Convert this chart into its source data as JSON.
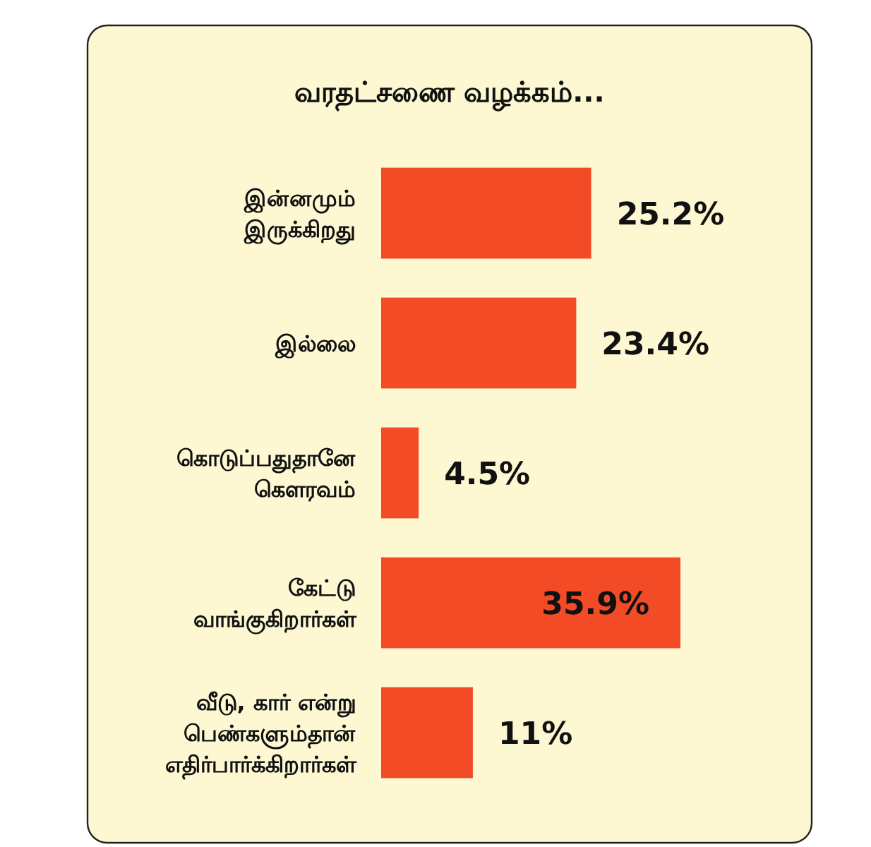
{
  "chart_data": {
    "type": "bar",
    "orientation": "horizontal",
    "title": "வரதட்சணை வழக்கம்...",
    "categories": [
      "இன்னமும்\nஇருக்கிறது",
      "இல்லை",
      "கொடுப்பதுதானே\nகௌரவம்",
      "கேட்டு\nவாங்குகிறார்கள்",
      "வீடு, கார் என்று\nபெண்களும்தான்\nஎதிர்பார்க்கிறார்கள்"
    ],
    "values": [
      25.2,
      23.4,
      4.5,
      35.9,
      11
    ],
    "value_labels": [
      "25.2%",
      "23.4%",
      "4.5%",
      "35.9%",
      "11%"
    ],
    "color": "#f24b25"
  }
}
